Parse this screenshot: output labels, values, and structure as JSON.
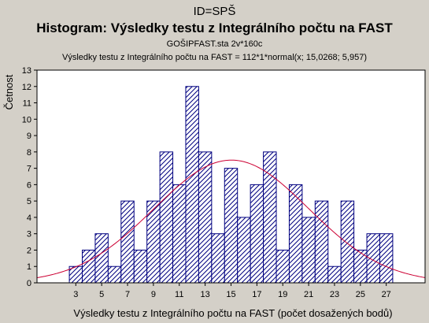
{
  "header": {
    "id_line": "ID=SPŠ",
    "title": "Histogram: Výsledky testu z Integrálního počtu na FAST",
    "file_line": "GOŠIPFAST.sta 2v*160c",
    "fit_line": "Výsledky testu z Integrálního počtu na FAST = 112*1*normal(x; 15,0268; 5,957)"
  },
  "colors": {
    "bar_stroke": "#000080",
    "bar_fill": "#ffffff",
    "curve": "#cc0033",
    "frame": "#000000",
    "background": "#d4d0c8",
    "plot_background": "#ffffff"
  },
  "chart_data": {
    "type": "bar",
    "title": "Histogram: Výsledky testu z Integrálního počtu na FAST",
    "xlabel": "Výsledky testu z Integrálního počtu na FAST (počet dosažených bodů)",
    "ylabel": "Četnost",
    "x": [
      3,
      4,
      5,
      6,
      7,
      8,
      9,
      10,
      11,
      12,
      13,
      14,
      15,
      16,
      17,
      18,
      19,
      20,
      21,
      22,
      23,
      24,
      25,
      26,
      27,
      28
    ],
    "values": [
      1,
      2,
      3,
      1,
      5,
      2,
      5,
      8,
      6,
      12,
      8,
      3,
      7,
      4,
      6,
      8,
      2,
      6,
      4,
      5,
      1,
      5,
      2,
      3,
      3,
      0
    ],
    "x_tick_labels": [
      "3",
      "5",
      "7",
      "9",
      "11",
      "13",
      "15",
      "17",
      "19",
      "21",
      "23",
      "25",
      "27"
    ],
    "y_tick_labels": [
      "0",
      "1",
      "2",
      "3",
      "4",
      "5",
      "6",
      "7",
      "8",
      "9",
      "10",
      "11",
      "12",
      "13"
    ],
    "xlim": [
      0,
      30
    ],
    "ylim": [
      0,
      13
    ],
    "bar_fill": "diagonal-hatch",
    "fit": {
      "type": "normal",
      "n": 112,
      "width": 1,
      "mean": 15.0268,
      "sd": 5.957
    },
    "grid": false
  }
}
